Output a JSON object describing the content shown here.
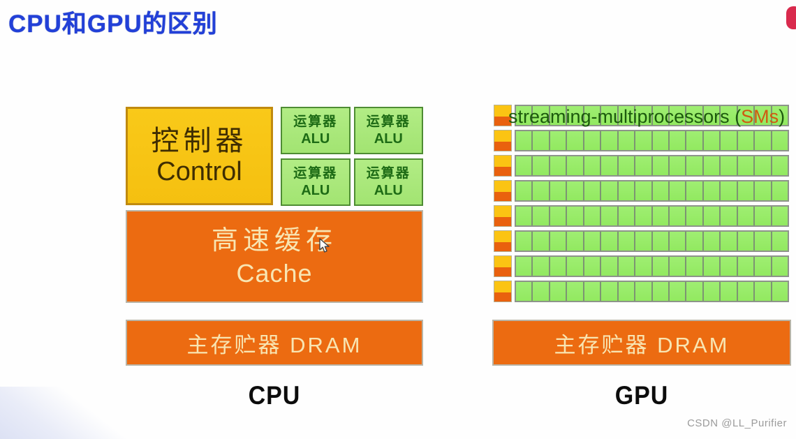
{
  "page": {
    "title": "CPU和GPU的区别",
    "watermark": "CSDN @LL_Purifier"
  },
  "cpu": {
    "label": "CPU",
    "control": {
      "line1": "控制器",
      "line2": "Control"
    },
    "alus": [
      {
        "line1": "运算器",
        "line2": "ALU"
      },
      {
        "line1": "运算器",
        "line2": "ALU"
      },
      {
        "line1": "运算器",
        "line2": "ALU"
      },
      {
        "line1": "运算器",
        "line2": "ALU"
      }
    ],
    "cache": {
      "line1": "高速缓存",
      "line2": "Cache"
    },
    "dram_label": "主存贮器 DRAM"
  },
  "gpu": {
    "label": "GPU",
    "sm_caption": {
      "prefix": "streaming-multiprocessors (",
      "highlight": "SMs",
      "suffix": ")"
    },
    "dram_label": "主存贮器 DRAM",
    "row_count": 8,
    "cells_per_row": 16
  },
  "colors": {
    "title_blue": "#2240d8",
    "control_yellow": "#f6c414",
    "control_border": "#c08a0e",
    "alu_green": "#a8e87a",
    "alu_border": "#4e8c33",
    "alu_text": "#1d6b15",
    "orange_block": "#ec6b11",
    "orange_block_text": "#f8e5b2",
    "gpu_cell_green": "#98ec68",
    "gpu_head_yellow": "#fbc413",
    "gpu_head_orange": "#e9610e",
    "sm_caption_green": "#1c5a0d",
    "sm_caption_highlight": "#cf5a10",
    "badge_red": "#d92a4d",
    "watermark_gray": "#9b9b9b"
  }
}
